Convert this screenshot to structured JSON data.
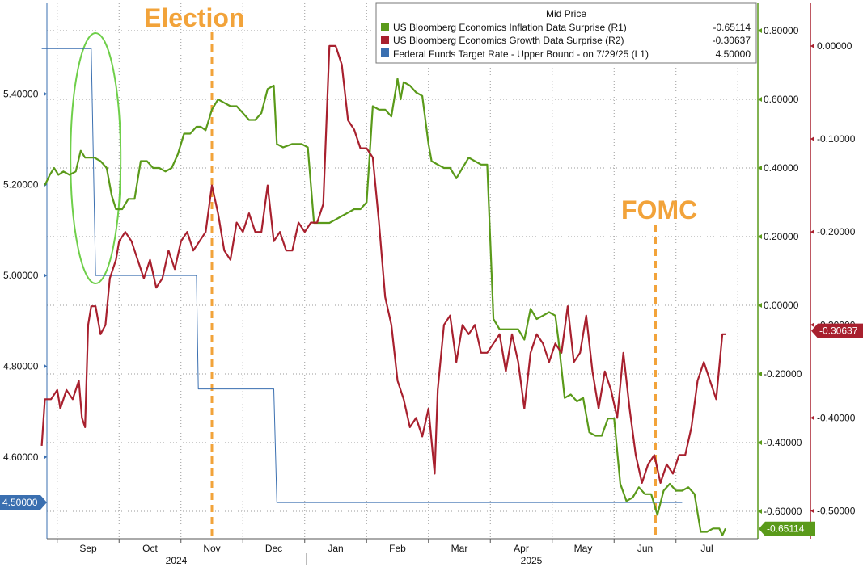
{
  "chart_data": {
    "type": "line",
    "legend": {
      "title": "Mid Price",
      "entries": [
        {
          "name": "US Bloomberg Economics Inflation Data Surprise  (R1)",
          "value": "-0.65114",
          "color": "#5a9a1a"
        },
        {
          "name": "US Bloomberg Economics Growth Data Surprise  (R2)",
          "value": "-0.30637",
          "color": "#a8202e"
        },
        {
          "name": "Federal Funds Target Rate - Upper Bound -   on 7/29/25  (L1)",
          "value": "4.50000",
          "color": "#3a6fb0"
        }
      ]
    },
    "x_axis": {
      "months": [
        "Sep",
        "Oct",
        "Nov",
        "Dec",
        "Jan",
        "Feb",
        "Mar",
        "Apr",
        "May",
        "Jun",
        "Jul"
      ],
      "years": [
        "2024",
        "2025"
      ]
    },
    "left_axis": {
      "range": [
        4.42,
        5.6
      ],
      "ticks": [
        "5.40000",
        "5.20000",
        "5.00000",
        "4.80000",
        "4.60000"
      ],
      "tick_values": [
        5.4,
        5.2,
        5.0,
        4.8,
        4.6
      ]
    },
    "right1_axis": {
      "range": [
        -0.68,
        0.88
      ],
      "ticks": [
        "0.80000",
        "0.60000",
        "0.40000",
        "0.20000",
        "0.00000",
        "-0.20000",
        "-0.40000",
        "-0.60000"
      ],
      "tick_values": [
        0.8,
        0.6,
        0.4,
        0.2,
        0.0,
        -0.2,
        -0.4,
        -0.6
      ]
    },
    "right2_axis": {
      "range": [
        -0.53,
        0.046
      ],
      "ticks": [
        "0.00000",
        "-0.10000",
        "-0.20000",
        "-0.30000",
        "-0.40000",
        "-0.50000"
      ],
      "tick_values": [
        0.0,
        -0.1,
        -0.2,
        -0.3,
        -0.4,
        -0.5
      ]
    },
    "last_value_labels": {
      "fed": "4.50000",
      "growth": "-0.30637",
      "inflation": "-0.65114"
    },
    "annotations": [
      {
        "text": "Election",
        "position": "top-left",
        "x_month_index": 2.0
      },
      {
        "text": "FOMC",
        "position": "center-right",
        "x_month_index": 9.17
      }
    ],
    "series": [
      {
        "name": "Federal Funds Target Rate - Upper Bound",
        "axis": "left",
        "color": "#3a6fb0",
        "points": [
          [
            -0.75,
            5.5
          ],
          [
            0.05,
            5.5
          ],
          [
            0.12,
            5.0
          ],
          [
            1.75,
            5.0
          ],
          [
            1.78,
            4.75
          ],
          [
            3.0,
            4.75
          ],
          [
            3.05,
            4.5
          ],
          [
            9.6,
            4.5
          ]
        ]
      },
      {
        "name": "US Bloomberg Economics Inflation Data Surprise",
        "axis": "right1",
        "color": "#5a9a1a",
        "points": [
          [
            -0.7,
            0.35
          ],
          [
            -0.62,
            0.38
          ],
          [
            -0.55,
            0.4
          ],
          [
            -0.48,
            0.38
          ],
          [
            -0.4,
            0.39
          ],
          [
            -0.3,
            0.38
          ],
          [
            -0.2,
            0.39
          ],
          [
            -0.12,
            0.45
          ],
          [
            -0.05,
            0.43
          ],
          [
            0.1,
            0.43
          ],
          [
            0.2,
            0.42
          ],
          [
            0.3,
            0.4
          ],
          [
            0.38,
            0.32
          ],
          [
            0.45,
            0.28
          ],
          [
            0.55,
            0.28
          ],
          [
            0.65,
            0.31
          ],
          [
            0.75,
            0.31
          ],
          [
            0.85,
            0.42
          ],
          [
            0.95,
            0.42
          ],
          [
            1.05,
            0.4
          ],
          [
            1.15,
            0.4
          ],
          [
            1.25,
            0.39
          ],
          [
            1.35,
            0.4
          ],
          [
            1.45,
            0.44
          ],
          [
            1.55,
            0.5
          ],
          [
            1.65,
            0.5
          ],
          [
            1.75,
            0.52
          ],
          [
            1.82,
            0.52
          ],
          [
            1.9,
            0.51
          ],
          [
            2.0,
            0.57
          ],
          [
            2.1,
            0.6
          ],
          [
            2.2,
            0.59
          ],
          [
            2.3,
            0.58
          ],
          [
            2.4,
            0.58
          ],
          [
            2.5,
            0.56
          ],
          [
            2.6,
            0.54
          ],
          [
            2.7,
            0.54
          ],
          [
            2.8,
            0.56
          ],
          [
            2.9,
            0.63
          ],
          [
            3.0,
            0.64
          ],
          [
            3.05,
            0.47
          ],
          [
            3.15,
            0.46
          ],
          [
            3.3,
            0.47
          ],
          [
            3.45,
            0.47
          ],
          [
            3.55,
            0.46
          ],
          [
            3.65,
            0.24
          ],
          [
            3.75,
            0.24
          ],
          [
            3.9,
            0.24
          ],
          [
            4.0,
            0.25
          ],
          [
            4.1,
            0.26
          ],
          [
            4.2,
            0.27
          ],
          [
            4.3,
            0.28
          ],
          [
            4.4,
            0.28
          ],
          [
            4.5,
            0.3
          ],
          [
            4.6,
            0.58
          ],
          [
            4.7,
            0.57
          ],
          [
            4.8,
            0.57
          ],
          [
            4.9,
            0.55
          ],
          [
            5.0,
            0.66
          ],
          [
            5.05,
            0.6
          ],
          [
            5.1,
            0.65
          ],
          [
            5.2,
            0.64
          ],
          [
            5.3,
            0.62
          ],
          [
            5.4,
            0.61
          ],
          [
            5.5,
            0.47
          ],
          [
            5.55,
            0.42
          ],
          [
            5.65,
            0.41
          ],
          [
            5.75,
            0.4
          ],
          [
            5.85,
            0.4
          ],
          [
            5.95,
            0.37
          ],
          [
            6.05,
            0.4
          ],
          [
            6.15,
            0.43
          ],
          [
            6.25,
            0.42
          ],
          [
            6.35,
            0.41
          ],
          [
            6.45,
            0.41
          ],
          [
            6.55,
            -0.04
          ],
          [
            6.65,
            -0.07
          ],
          [
            6.75,
            -0.07
          ],
          [
            6.85,
            -0.07
          ],
          [
            6.95,
            -0.07
          ],
          [
            7.05,
            -0.1
          ],
          [
            7.15,
            -0.01
          ],
          [
            7.25,
            -0.04
          ],
          [
            7.35,
            -0.03
          ],
          [
            7.45,
            -0.02
          ],
          [
            7.55,
            -0.03
          ],
          [
            7.6,
            -0.1
          ],
          [
            7.7,
            -0.27
          ],
          [
            7.8,
            -0.26
          ],
          [
            7.9,
            -0.28
          ],
          [
            8.0,
            -0.27
          ],
          [
            8.1,
            -0.37
          ],
          [
            8.2,
            -0.38
          ],
          [
            8.3,
            -0.38
          ],
          [
            8.4,
            -0.33
          ],
          [
            8.5,
            -0.33
          ],
          [
            8.6,
            -0.52
          ],
          [
            8.7,
            -0.57
          ],
          [
            8.8,
            -0.56
          ],
          [
            8.9,
            -0.53
          ],
          [
            9.0,
            -0.55
          ],
          [
            9.1,
            -0.55
          ],
          [
            9.2,
            -0.61
          ],
          [
            9.3,
            -0.54
          ],
          [
            9.4,
            -0.52
          ],
          [
            9.5,
            -0.54
          ],
          [
            9.6,
            -0.54
          ],
          [
            9.7,
            -0.53
          ],
          [
            9.8,
            -0.55
          ],
          [
            9.9,
            -0.66
          ],
          [
            10.0,
            -0.66
          ],
          [
            10.1,
            -0.65
          ],
          [
            10.2,
            -0.65
          ],
          [
            10.25,
            -0.67
          ],
          [
            10.3,
            -0.65
          ]
        ]
      },
      {
        "name": "US Bloomberg Economics Growth Data Surprise",
        "axis": "right2",
        "color": "#a8202e",
        "points": [
          [
            -0.75,
            -0.43
          ],
          [
            -0.7,
            -0.38
          ],
          [
            -0.6,
            -0.38
          ],
          [
            -0.5,
            -0.37
          ],
          [
            -0.45,
            -0.39
          ],
          [
            -0.35,
            -0.37
          ],
          [
            -0.25,
            -0.38
          ],
          [
            -0.15,
            -0.36
          ],
          [
            -0.1,
            -0.4
          ],
          [
            -0.05,
            -0.41
          ],
          [
            0.0,
            -0.3
          ],
          [
            0.05,
            -0.28
          ],
          [
            0.12,
            -0.28
          ],
          [
            0.2,
            -0.31
          ],
          [
            0.28,
            -0.3
          ],
          [
            0.35,
            -0.25
          ],
          [
            0.45,
            -0.23
          ],
          [
            0.5,
            -0.21
          ],
          [
            0.6,
            -0.2
          ],
          [
            0.7,
            -0.21
          ],
          [
            0.8,
            -0.23
          ],
          [
            0.9,
            -0.25
          ],
          [
            1.0,
            -0.23
          ],
          [
            1.1,
            -0.26
          ],
          [
            1.2,
            -0.25
          ],
          [
            1.3,
            -0.22
          ],
          [
            1.4,
            -0.24
          ],
          [
            1.5,
            -0.21
          ],
          [
            1.6,
            -0.2
          ],
          [
            1.7,
            -0.22
          ],
          [
            1.8,
            -0.21
          ],
          [
            1.9,
            -0.2
          ],
          [
            2.0,
            -0.15
          ],
          [
            2.1,
            -0.18
          ],
          [
            2.2,
            -0.22
          ],
          [
            2.3,
            -0.23
          ],
          [
            2.4,
            -0.19
          ],
          [
            2.5,
            -0.2
          ],
          [
            2.6,
            -0.18
          ],
          [
            2.7,
            -0.2
          ],
          [
            2.8,
            -0.2
          ],
          [
            2.9,
            -0.15
          ],
          [
            3.0,
            -0.21
          ],
          [
            3.1,
            -0.2
          ],
          [
            3.2,
            -0.22
          ],
          [
            3.3,
            -0.22
          ],
          [
            3.4,
            -0.19
          ],
          [
            3.5,
            -0.2
          ],
          [
            3.6,
            -0.19
          ],
          [
            3.7,
            -0.19
          ],
          [
            3.8,
            -0.17
          ],
          [
            3.9,
            0.0
          ],
          [
            4.0,
            0.0
          ],
          [
            4.1,
            -0.02
          ],
          [
            4.2,
            -0.08
          ],
          [
            4.3,
            -0.09
          ],
          [
            4.4,
            -0.11
          ],
          [
            4.5,
            -0.11
          ],
          [
            4.6,
            -0.12
          ],
          [
            4.7,
            -0.19
          ],
          [
            4.8,
            -0.27
          ],
          [
            4.9,
            -0.3
          ],
          [
            5.0,
            -0.36
          ],
          [
            5.1,
            -0.38
          ],
          [
            5.2,
            -0.41
          ],
          [
            5.3,
            -0.4
          ],
          [
            5.4,
            -0.42
          ],
          [
            5.5,
            -0.39
          ],
          [
            5.6,
            -0.46
          ],
          [
            5.65,
            -0.37
          ],
          [
            5.75,
            -0.3
          ],
          [
            5.85,
            -0.29
          ],
          [
            5.95,
            -0.34
          ],
          [
            6.05,
            -0.3
          ],
          [
            6.15,
            -0.31
          ],
          [
            6.25,
            -0.3
          ],
          [
            6.35,
            -0.33
          ],
          [
            6.45,
            -0.33
          ],
          [
            6.55,
            -0.32
          ],
          [
            6.65,
            -0.31
          ],
          [
            6.75,
            -0.35
          ],
          [
            6.85,
            -0.31
          ],
          [
            6.95,
            -0.34
          ],
          [
            7.05,
            -0.39
          ],
          [
            7.15,
            -0.33
          ],
          [
            7.25,
            -0.31
          ],
          [
            7.35,
            -0.32
          ],
          [
            7.45,
            -0.34
          ],
          [
            7.55,
            -0.32
          ],
          [
            7.65,
            -0.33
          ],
          [
            7.75,
            -0.28
          ],
          [
            7.85,
            -0.34
          ],
          [
            7.95,
            -0.33
          ],
          [
            8.05,
            -0.29
          ],
          [
            8.15,
            -0.35
          ],
          [
            8.25,
            -0.39
          ],
          [
            8.35,
            -0.35
          ],
          [
            8.45,
            -0.37
          ],
          [
            8.55,
            -0.4
          ],
          [
            8.65,
            -0.33
          ],
          [
            8.75,
            -0.39
          ],
          [
            8.85,
            -0.44
          ],
          [
            8.95,
            -0.47
          ],
          [
            9.05,
            -0.45
          ],
          [
            9.15,
            -0.44
          ],
          [
            9.25,
            -0.47
          ],
          [
            9.35,
            -0.45
          ],
          [
            9.45,
            -0.46
          ],
          [
            9.55,
            -0.44
          ],
          [
            9.65,
            -0.44
          ],
          [
            9.75,
            -0.41
          ],
          [
            9.85,
            -0.36
          ],
          [
            9.95,
            -0.34
          ],
          [
            10.05,
            -0.36
          ],
          [
            10.15,
            -0.38
          ],
          [
            10.25,
            -0.31
          ],
          [
            10.3,
            -0.31
          ]
        ]
      }
    ]
  }
}
